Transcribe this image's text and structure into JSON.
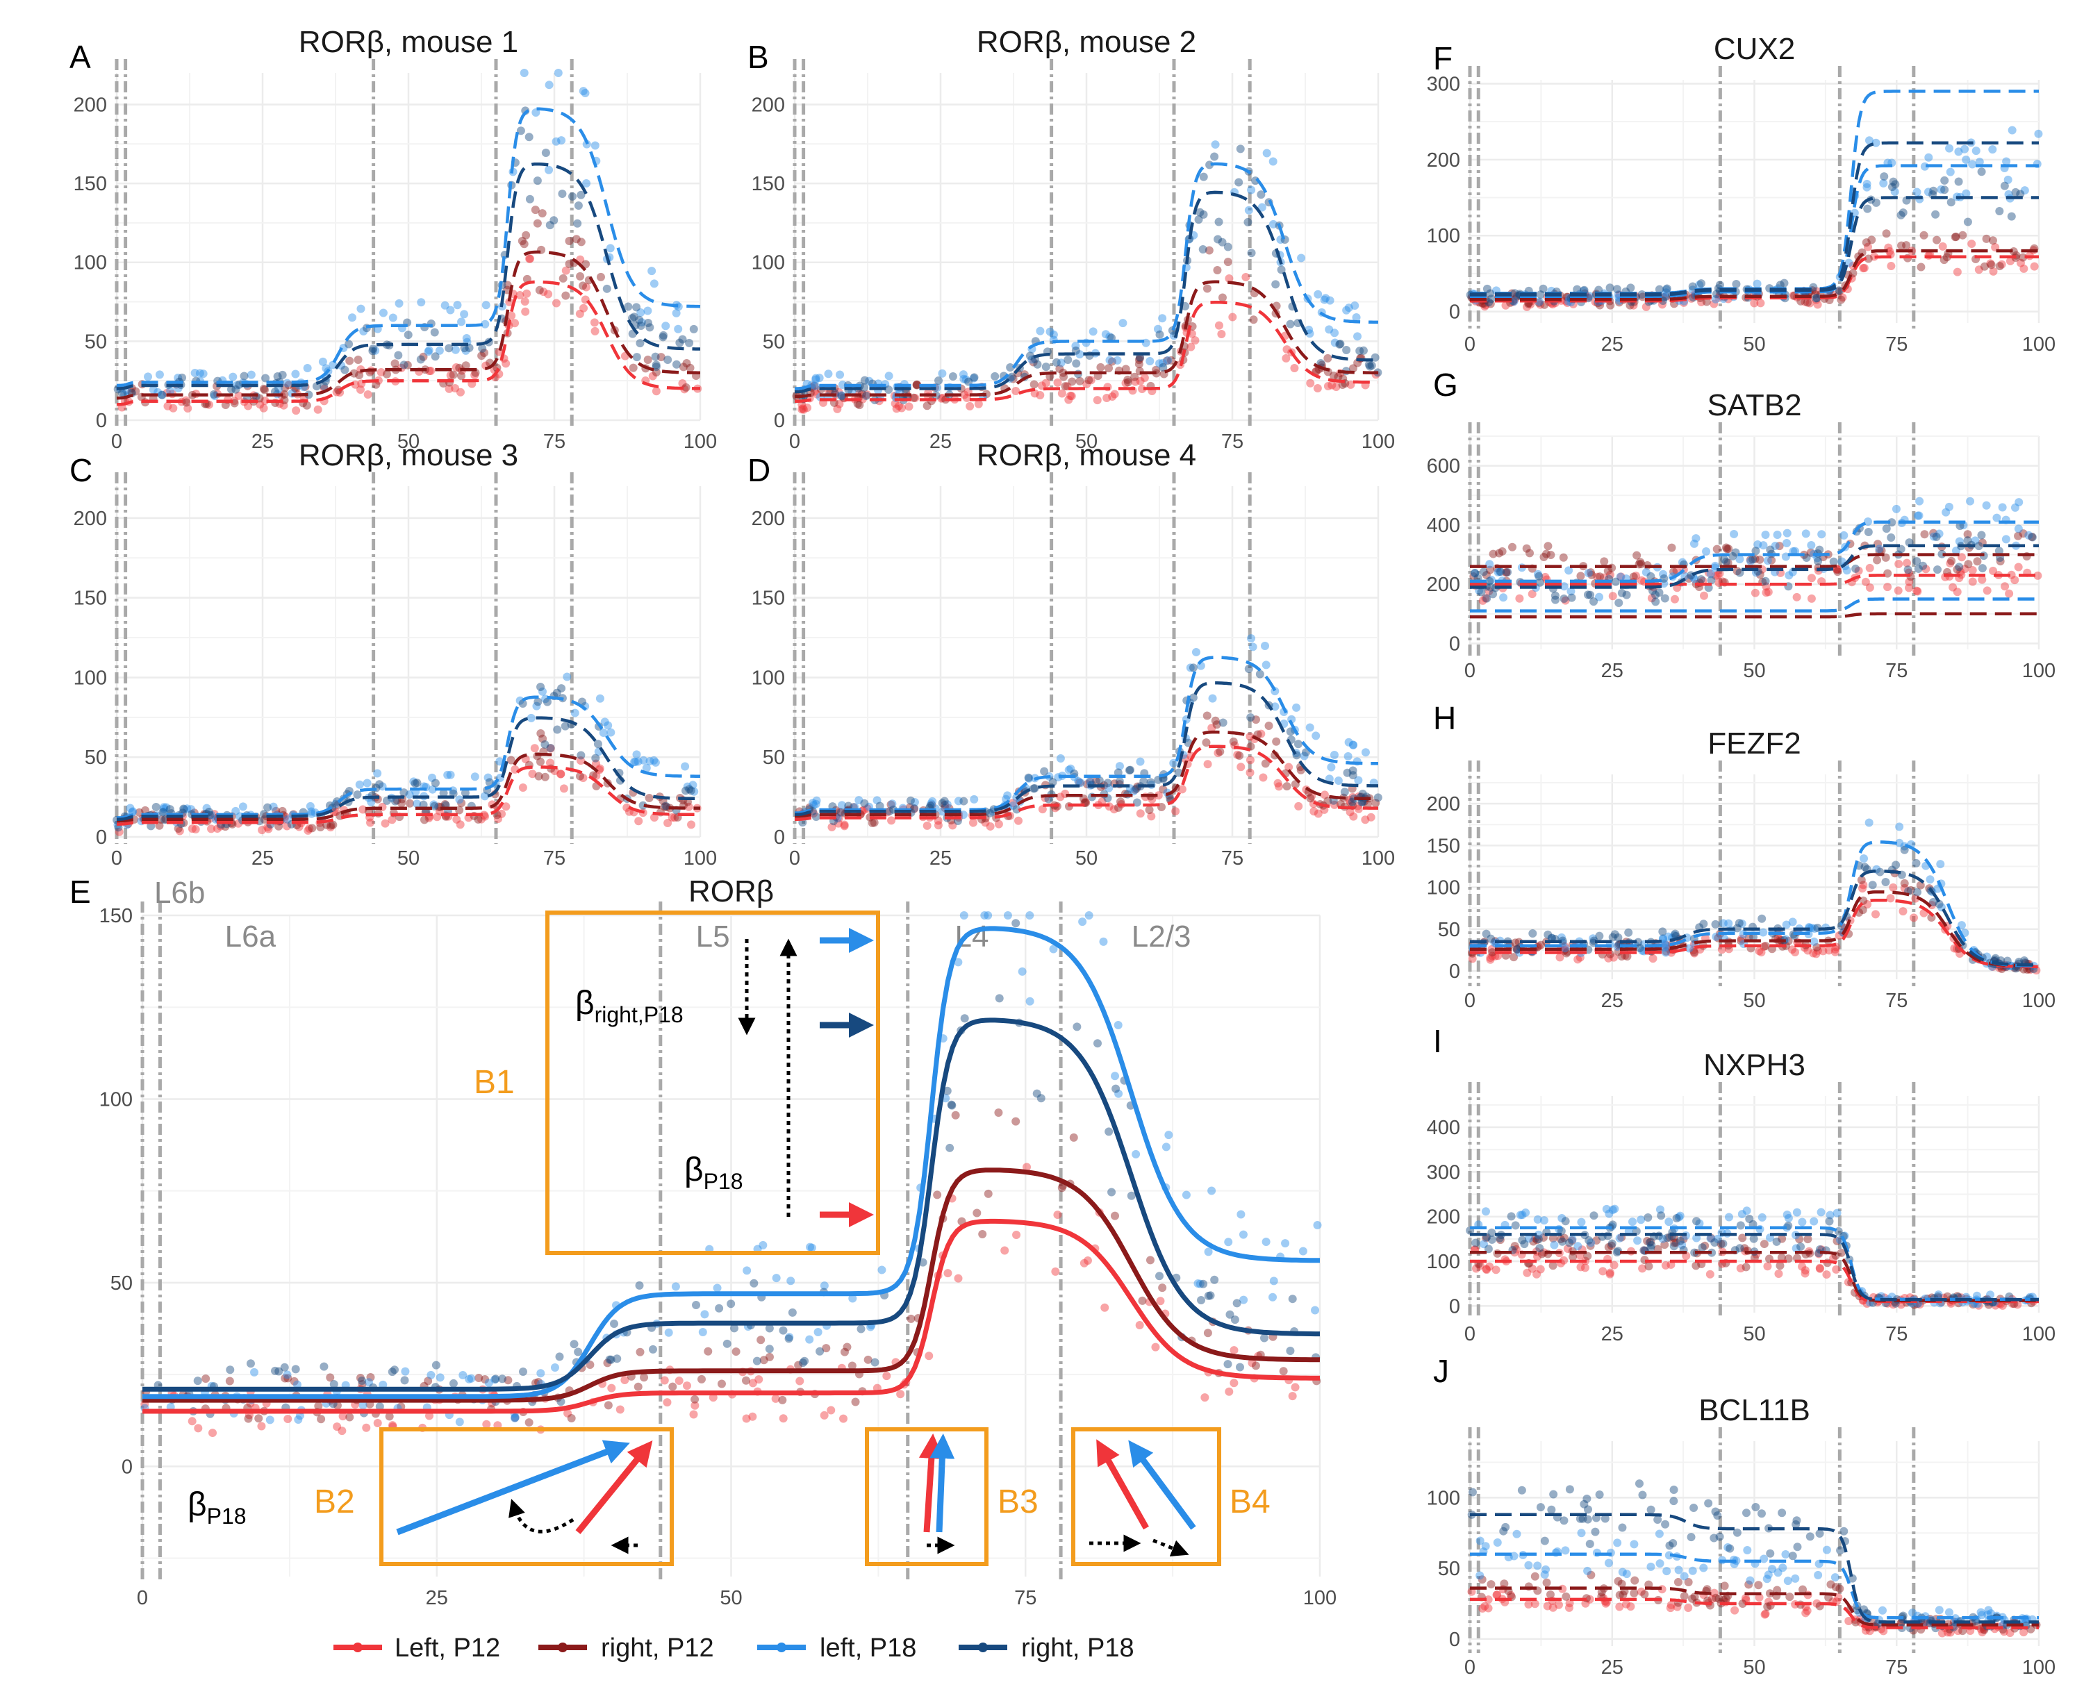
{
  "colors": {
    "left_p12": "#f0353a",
    "right_p12": "#8b1a1a",
    "left_p18": "#2a8de8",
    "right_p18": "#17497f",
    "orange": "#f39c1d",
    "grid": "#ececec",
    "boundary": "#a9a9a9"
  },
  "legend": {
    "items": [
      {
        "label": "Left, P12",
        "color": "#f0353a"
      },
      {
        "label": "right, P12",
        "color": "#8b1a1a"
      },
      {
        "label": "left, P18",
        "color": "#2a8de8"
      },
      {
        "label": "right, P18",
        "color": "#17497f"
      }
    ]
  },
  "chart_data": [
    {
      "panel": "A",
      "title": "RORβ, mouse 1",
      "type": "line",
      "xlim": [
        0,
        100
      ],
      "ylim": [
        0,
        220
      ],
      "xticks": [
        0,
        25,
        50,
        75,
        100
      ],
      "yticks": [
        0,
        50,
        100,
        150,
        200
      ],
      "boundaries": [
        0,
        1.5,
        44,
        65,
        78
      ],
      "series": [
        {
          "key": "left_p12",
          "style": "dashed",
          "levels": [
            10,
            12,
            25,
            88,
            20
          ]
        },
        {
          "key": "right_p12",
          "style": "dashed",
          "levels": [
            14,
            16,
            32,
            107,
            30
          ]
        },
        {
          "key": "left_p18",
          "style": "dashed",
          "levels": [
            22,
            24,
            60,
            198,
            72
          ]
        },
        {
          "key": "right_p18",
          "style": "dashed",
          "levels": [
            20,
            22,
            48,
            163,
            45
          ]
        }
      ]
    },
    {
      "panel": "B",
      "title": "RORβ, mouse 2",
      "type": "line",
      "xlim": [
        0,
        100
      ],
      "ylim": [
        0,
        220
      ],
      "xticks": [
        0,
        25,
        50,
        75,
        100
      ],
      "yticks": [
        0,
        50,
        100,
        150,
        200
      ],
      "boundaries": [
        0,
        1.5,
        44,
        65,
        78
      ],
      "series": [
        {
          "key": "left_p12",
          "style": "dashed",
          "levels": [
            12,
            13,
            20,
            75,
            24
          ]
        },
        {
          "key": "right_p12",
          "style": "dashed",
          "levels": [
            15,
            16,
            30,
            88,
            30
          ]
        },
        {
          "key": "left_p18",
          "style": "dashed",
          "levels": [
            20,
            22,
            50,
            163,
            62
          ]
        },
        {
          "key": "right_p18",
          "style": "dashed",
          "levels": [
            18,
            20,
            42,
            145,
            38
          ]
        }
      ]
    },
    {
      "panel": "C",
      "title": "RORβ, mouse 3",
      "type": "line",
      "xlim": [
        0,
        100
      ],
      "ylim": [
        0,
        220
      ],
      "xticks": [
        0,
        25,
        50,
        75,
        100
      ],
      "yticks": [
        0,
        50,
        100,
        150,
        200
      ],
      "boundaries": [
        0,
        1.5,
        44,
        65,
        78
      ],
      "series": [
        {
          "key": "left_p12",
          "style": "dashed",
          "levels": [
            8,
            9,
            14,
            44,
            14
          ]
        },
        {
          "key": "right_p12",
          "style": "dashed",
          "levels": [
            10,
            11,
            18,
            52,
            18
          ]
        },
        {
          "key": "left_p18",
          "style": "dashed",
          "levels": [
            12,
            14,
            30,
            88,
            38
          ]
        },
        {
          "key": "right_p18",
          "style": "dashed",
          "levels": [
            11,
            13,
            25,
            75,
            24
          ]
        }
      ]
    },
    {
      "panel": "D",
      "title": "RORβ, mouse 4",
      "type": "line",
      "xlim": [
        0,
        100
      ],
      "ylim": [
        0,
        220
      ],
      "xticks": [
        0,
        25,
        50,
        75,
        100
      ],
      "yticks": [
        0,
        50,
        100,
        150,
        200
      ],
      "boundaries": [
        0,
        1.5,
        44,
        65,
        78
      ],
      "series": [
        {
          "key": "left_p12",
          "style": "dashed",
          "levels": [
            11,
            12,
            20,
            57,
            18
          ]
        },
        {
          "key": "right_p12",
          "style": "dashed",
          "levels": [
            13,
            14,
            26,
            66,
            24
          ]
        },
        {
          "key": "left_p18",
          "style": "dashed",
          "levels": [
            15,
            17,
            38,
            113,
            46
          ]
        },
        {
          "key": "right_p18",
          "style": "dashed",
          "levels": [
            14,
            16,
            32,
            97,
            32
          ]
        }
      ]
    },
    {
      "panel": "E",
      "title": "RORβ",
      "type": "line",
      "xlim": [
        0,
        100
      ],
      "ylim": [
        -30,
        150
      ],
      "xticks": [
        0,
        25,
        50,
        75,
        100
      ],
      "yticks": [
        0,
        50,
        100,
        150
      ],
      "boundaries": [
        0,
        1.5,
        44,
        65,
        78
      ],
      "layer_labels": [
        {
          "label": "L6b",
          "x": 1
        },
        {
          "label": "L6a",
          "x": 7
        },
        {
          "label": "L5",
          "x": 47
        },
        {
          "label": "L4",
          "x": 69
        },
        {
          "label": "L2/3",
          "x": 84
        }
      ],
      "series": [
        {
          "key": "left_p12",
          "style": "solid",
          "levels": [
            15,
            15,
            20,
            67,
            24
          ]
        },
        {
          "key": "right_p12",
          "style": "solid",
          "levels": [
            18,
            18,
            26,
            81,
            29
          ]
        },
        {
          "key": "left_p18",
          "style": "solid",
          "levels": [
            19,
            19,
            47,
            147,
            56
          ]
        },
        {
          "key": "right_p18",
          "style": "solid",
          "levels": [
            21,
            21,
            39,
            122,
            36
          ]
        }
      ],
      "annotations": {
        "boxes": [
          "B1",
          "B2",
          "B3",
          "B4"
        ],
        "beta_right": "β",
        "beta_right_sub": "right,P18",
        "beta_p18": "β",
        "beta_p18_sub": "P18"
      }
    },
    {
      "panel": "F",
      "title": "CUX2",
      "type": "line",
      "xlim": [
        0,
        100
      ],
      "ylim": [
        -15,
        305
      ],
      "xticks": [
        0,
        25,
        50,
        75,
        100
      ],
      "yticks": [
        0,
        100,
        200,
        300
      ],
      "boundaries": [
        0,
        1.5,
        44,
        65,
        78
      ],
      "series": [
        {
          "key": "left_p12",
          "style": "dashed",
          "levels": [
            14,
            14,
            18,
            72,
            72
          ]
        },
        {
          "key": "right_p12",
          "style": "dashed",
          "levels": [
            16,
            16,
            20,
            80,
            80
          ]
        },
        {
          "key": "left_p18",
          "style": "dashed",
          "levels": [
            20,
            20,
            26,
            192,
            192
          ]
        },
        {
          "key": "right_p18",
          "style": "dashed",
          "levels": [
            22,
            22,
            28,
            150,
            150
          ]
        },
        {
          "key": "left_p18",
          "style": "dashed",
          "levels": [
            24,
            24,
            30,
            290,
            290
          ]
        },
        {
          "key": "right_p18",
          "style": "dashed",
          "levels": [
            23,
            23,
            29,
            222,
            222
          ]
        }
      ]
    },
    {
      "panel": "G",
      "title": "SATB2",
      "type": "line",
      "xlim": [
        0,
        100
      ],
      "ylim": [
        -20,
        700
      ],
      "xticks": [
        0,
        25,
        50,
        75,
        100
      ],
      "yticks": [
        0,
        200,
        400,
        600
      ],
      "boundaries": [
        0,
        1.5,
        44,
        65,
        78
      ],
      "series": [
        {
          "key": "left_p12",
          "style": "dashed",
          "levels": [
            200,
            200,
            200,
            230,
            230
          ]
        },
        {
          "key": "right_p12",
          "style": "dashed",
          "levels": [
            260,
            260,
            260,
            300,
            300
          ]
        },
        {
          "key": "left_p18",
          "style": "dashed",
          "levels": [
            210,
            210,
            300,
            410,
            410
          ]
        },
        {
          "key": "right_p18",
          "style": "dashed",
          "levels": [
            190,
            190,
            250,
            330,
            330
          ]
        },
        {
          "key": "left_p18",
          "style": "dashed",
          "levels": [
            110,
            110,
            110,
            150,
            150
          ]
        },
        {
          "key": "right_p12",
          "style": "dashed",
          "levels": [
            90,
            90,
            90,
            100,
            100
          ]
        }
      ]
    },
    {
      "panel": "H",
      "title": "FEZF2",
      "type": "line",
      "xlim": [
        0,
        100
      ],
      "ylim": [
        -10,
        235
      ],
      "xticks": [
        0,
        25,
        50,
        75,
        100
      ],
      "yticks": [
        0,
        50,
        100,
        150,
        200
      ],
      "boundaries": [
        0,
        1.5,
        44,
        65,
        78
      ],
      "series": [
        {
          "key": "left_p12",
          "style": "dashed",
          "levels": [
            22,
            22,
            30,
            85,
            5
          ]
        },
        {
          "key": "right_p12",
          "style": "dashed",
          "levels": [
            26,
            26,
            36,
            95,
            6
          ]
        },
        {
          "key": "left_p18",
          "style": "dashed",
          "levels": [
            30,
            30,
            45,
            155,
            6
          ]
        },
        {
          "key": "right_p18",
          "style": "dashed",
          "levels": [
            35,
            35,
            50,
            120,
            7
          ]
        }
      ]
    },
    {
      "panel": "I",
      "title": "NXPH3",
      "type": "line",
      "xlim": [
        0,
        100
      ],
      "ylim": [
        -15,
        470
      ],
      "xticks": [
        0,
        25,
        50,
        75,
        100
      ],
      "yticks": [
        0,
        100,
        200,
        300,
        400
      ],
      "boundaries": [
        0,
        1.5,
        44,
        65,
        78
      ],
      "series": [
        {
          "key": "left_p12",
          "style": "dashed",
          "levels": [
            100,
            100,
            100,
            10,
            10
          ]
        },
        {
          "key": "right_p12",
          "style": "dashed",
          "levels": [
            120,
            120,
            120,
            12,
            12
          ]
        },
        {
          "key": "left_p18",
          "style": "dashed",
          "levels": [
            175,
            175,
            175,
            15,
            15
          ]
        },
        {
          "key": "right_p18",
          "style": "dashed",
          "levels": [
            160,
            160,
            160,
            14,
            14
          ]
        }
      ]
    },
    {
      "panel": "J",
      "title": "BCL11B",
      "type": "line",
      "xlim": [
        0,
        100
      ],
      "ylim": [
        -5,
        140
      ],
      "xticks": [
        0,
        25,
        50,
        75,
        100
      ],
      "yticks": [
        0,
        50,
        100
      ],
      "boundaries": [
        0,
        1.5,
        44,
        65,
        78
      ],
      "series": [
        {
          "key": "left_p12",
          "style": "dashed",
          "levels": [
            28,
            28,
            25,
            8,
            8
          ]
        },
        {
          "key": "right_p12",
          "style": "dashed",
          "levels": [
            36,
            36,
            32,
            10,
            10
          ]
        },
        {
          "key": "left_p18",
          "style": "dashed",
          "levels": [
            60,
            60,
            55,
            15,
            15
          ]
        },
        {
          "key": "right_p18",
          "style": "dashed",
          "levels": [
            88,
            88,
            78,
            12,
            12
          ]
        }
      ]
    }
  ]
}
